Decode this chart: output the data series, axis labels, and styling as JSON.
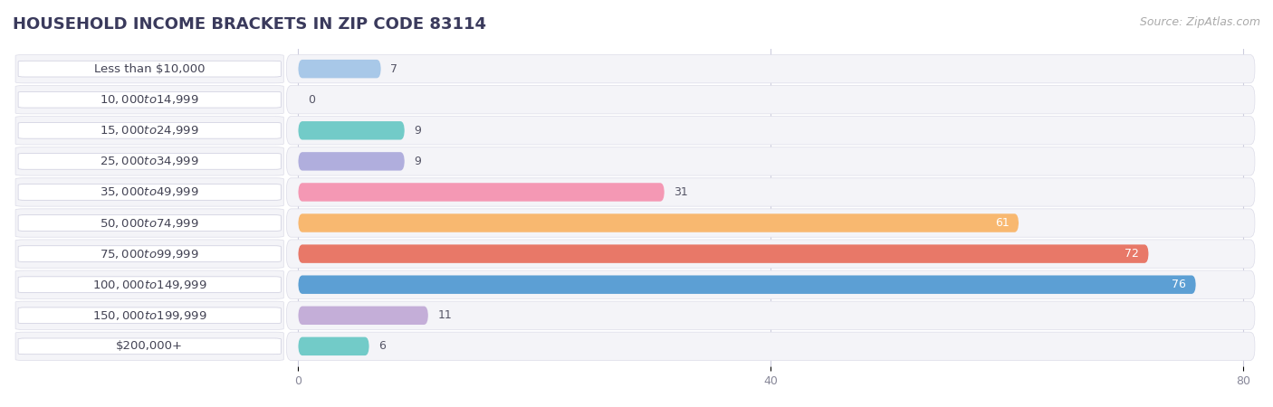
{
  "title": "HOUSEHOLD INCOME BRACKETS IN ZIP CODE 83114",
  "source": "Source: ZipAtlas.com",
  "categories": [
    "Less than $10,000",
    "$10,000 to $14,999",
    "$15,000 to $24,999",
    "$25,000 to $34,999",
    "$35,000 to $49,999",
    "$50,000 to $74,999",
    "$75,000 to $99,999",
    "$100,000 to $149,999",
    "$150,000 to $199,999",
    "$200,000+"
  ],
  "values": [
    7,
    0,
    9,
    9,
    31,
    61,
    72,
    76,
    11,
    6
  ],
  "bar_colors": [
    "#a8c8e8",
    "#c4aed8",
    "#72cbc8",
    "#b0aedd",
    "#f498b4",
    "#f8b870",
    "#e87868",
    "#5c9fd4",
    "#c4aed8",
    "#72cbc8"
  ],
  "label_colors": [
    "dark",
    "dark",
    "dark",
    "dark",
    "dark",
    "white",
    "white",
    "white",
    "dark",
    "dark"
  ],
  "x_max": 80,
  "xticks": [
    0,
    40,
    80
  ],
  "title_color": "#3a3a5c",
  "title_fontsize": 13,
  "source_fontsize": 9,
  "label_fontsize": 9.5,
  "value_fontsize": 9,
  "bar_height": 0.6,
  "row_bg_color": "#f0f0f4",
  "row_line_color": "#dcdce8"
}
